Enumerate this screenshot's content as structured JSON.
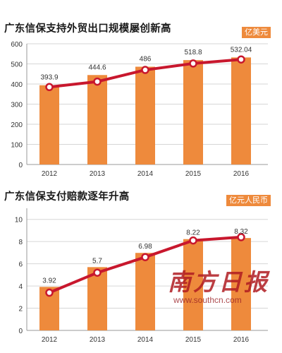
{
  "chart_data": [
    {
      "type": "bar",
      "title": "广东信保支持外贸出口规模屡创新高",
      "unit": "亿美元",
      "categories": [
        "2012",
        "2013",
        "2014",
        "2015",
        "2016"
      ],
      "values": [
        393.9,
        444.6,
        486,
        518.8,
        532.04
      ],
      "labels": [
        "393.9",
        "444.6",
        "486",
        "518.8",
        "532.04"
      ],
      "trend_values": [
        385,
        412,
        470,
        502,
        522
      ],
      "yticks": [
        "0",
        "100",
        "200",
        "300",
        "400",
        "500",
        "600"
      ],
      "ylim": [
        0,
        600
      ],
      "grid": true,
      "colors": {
        "bar": "#ee8a3c",
        "line": "#c8172d",
        "marker_fill": "#ffffff",
        "marker_stroke": "#c8172d"
      }
    },
    {
      "type": "bar",
      "title": "广东信保支付赔款逐年升高",
      "unit": "亿元人民币",
      "categories": [
        "2012",
        "2013",
        "2014",
        "2015",
        "2016"
      ],
      "values": [
        3.92,
        5.7,
        6.98,
        8.22,
        8.32
      ],
      "labels": [
        "3.92",
        "5.7",
        "6.98",
        "8.22",
        "8.32"
      ],
      "trend_values": [
        3.4,
        5.2,
        6.6,
        8.1,
        8.4
      ],
      "yticks": [
        "0",
        "2",
        "4",
        "6",
        "8",
        "10"
      ],
      "ylim": [
        0,
        11
      ],
      "grid": true,
      "colors": {
        "bar": "#ee8a3c",
        "line": "#c8172d",
        "marker_fill": "#ffffff",
        "marker_stroke": "#c8172d"
      }
    }
  ],
  "watermark": {
    "text": "南方日报",
    "url": "www.southcn.com"
  }
}
